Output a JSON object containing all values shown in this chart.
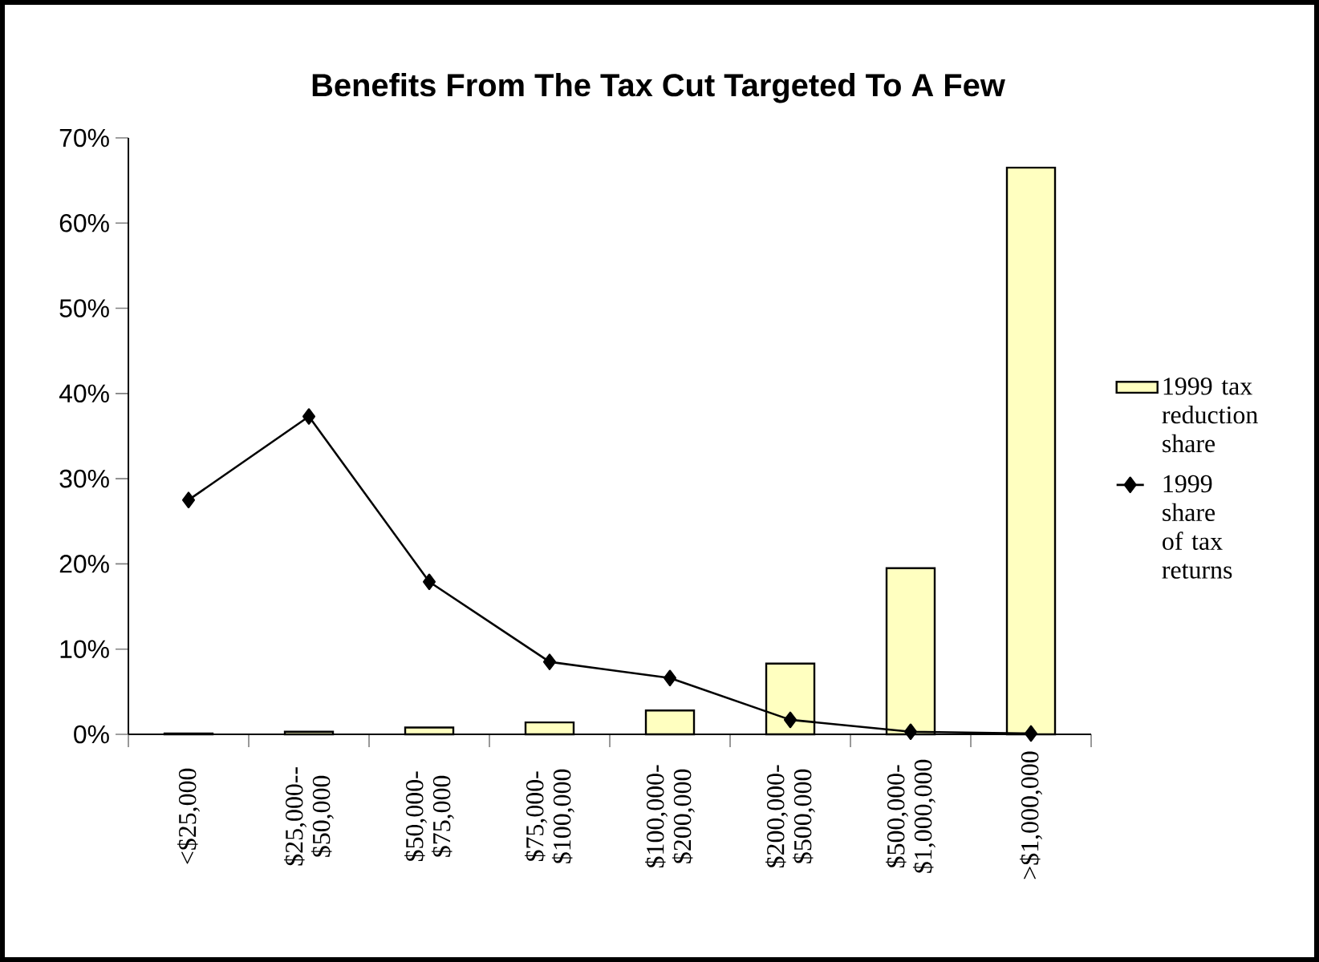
{
  "chart_data": {
    "type": "bar",
    "title": "Benefits From The Tax Cut Targeted To A Few",
    "categories": [
      "<$25,000",
      "$25,000-- $50,000",
      "$50,000- $75,000",
      "$75,000- $100,000",
      "$100,000- $200,000",
      "$200,000- $500,000",
      "$500,000- $1,000,000",
      ">$1,000,000"
    ],
    "series": [
      {
        "name": "1999 tax reduction share",
        "color": "#ffffc0",
        "values": [
          0.1,
          0.3,
          0.8,
          1.4,
          2.8,
          8.3,
          19.5,
          66.5
        ]
      },
      {
        "name": "1999 share of tax returns",
        "type": "line",
        "color": "#000000",
        "marker": "diamond",
        "values": [
          27.5,
          37.3,
          17.9,
          8.5,
          6.6,
          1.7,
          0.3,
          0.1
        ]
      }
    ],
    "ylim": [
      0,
      70
    ],
    "yticks": [
      {
        "value": 0,
        "label": "0%"
      },
      {
        "value": 10,
        "label": "10%"
      },
      {
        "value": 20,
        "label": "20%"
      },
      {
        "value": 30,
        "label": "30%"
      },
      {
        "value": 40,
        "label": "40%"
      },
      {
        "value": 50,
        "label": "50%"
      },
      {
        "value": 60,
        "label": "60%"
      },
      {
        "value": 70,
        "label": "70%"
      }
    ],
    "grid": false,
    "legend": "right"
  }
}
